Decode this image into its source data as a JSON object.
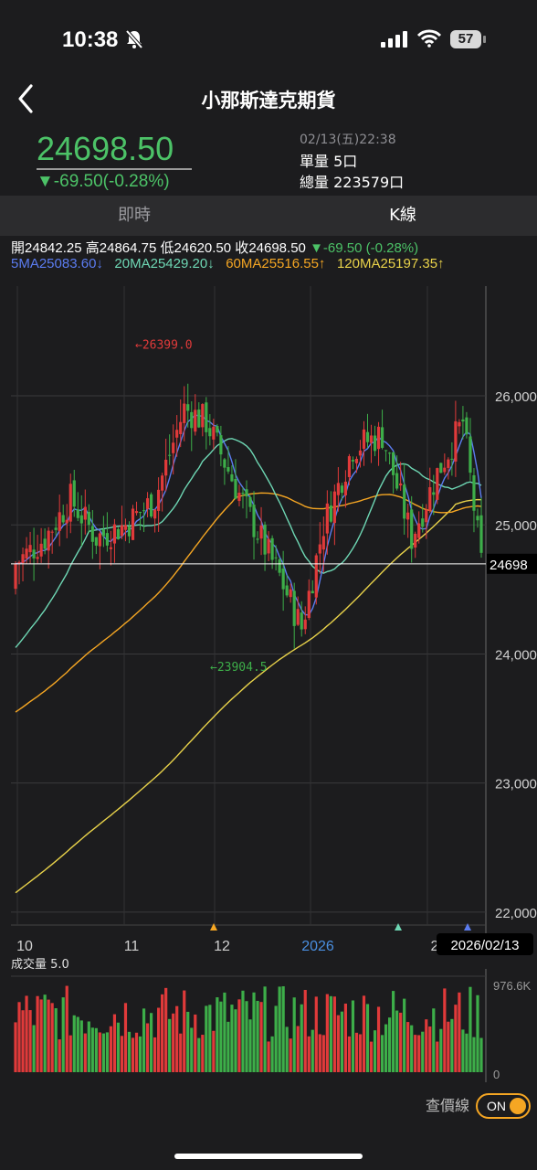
{
  "status_bar": {
    "time": "10:38",
    "battery": "57"
  },
  "header": {
    "title": "小那斯達克期貨"
  },
  "quote": {
    "price": "24698.50",
    "change": "▼-69.50(-0.28%)",
    "datetime": "02/13(五)22:38",
    "unit_volume": "單量 5口",
    "total_volume": "總量 223579口"
  },
  "tabs": [
    {
      "label": "即時"
    },
    {
      "label": "K線"
    }
  ],
  "ohlc": {
    "open_label": "開",
    "open": "24842.25",
    "high_label": "高",
    "high": "24864.75",
    "low_label": "低",
    "low": "24620.50",
    "close_label": "收",
    "close": "24698.50",
    "change": "▼-69.50 (-0.28%)"
  },
  "ma_legend": [
    {
      "text": "5MA25083.60↓",
      "color": "#5b7cf0"
    },
    {
      "text": "20MA25429.20↓",
      "color": "#6ed7b4"
    },
    {
      "text": "60MA25516.55↑",
      "color": "#f5a623"
    },
    {
      "text": "120MA25197.35↑",
      "color": "#e8d24a"
    }
  ],
  "colors": {
    "up": "#e03a3a",
    "down": "#3dae49",
    "accent": "#f5a623"
  },
  "chart_data": {
    "type": "candlestick",
    "y_ticks": [
      "26,000",
      "25,000",
      "24,000",
      "23,000",
      "22,000"
    ],
    "ylim": [
      21900,
      26850
    ],
    "x_ticks": [
      "10",
      "11",
      "12",
      "2026",
      "2"
    ],
    "last_price_label": "24698",
    "cursor_date": "2026/02/13",
    "annotations": [
      {
        "text": "←26399.0",
        "value": 26399.0
      },
      {
        "text": "←23904.5",
        "value": 23904.5
      }
    ],
    "candle_count": 128,
    "ma_series": [
      {
        "name": "5MA",
        "last": 25083.6
      },
      {
        "name": "20MA",
        "last": 25429.2
      },
      {
        "name": "60MA",
        "last": 25516.55
      },
      {
        "name": "120MA",
        "last": 25197.35
      }
    ],
    "volume": {
      "label": "成交量 5.0",
      "max_label": "976.6K",
      "zero_label": "0"
    }
  },
  "footer": {
    "switch_label": "查價線",
    "toggle_state": "ON"
  }
}
